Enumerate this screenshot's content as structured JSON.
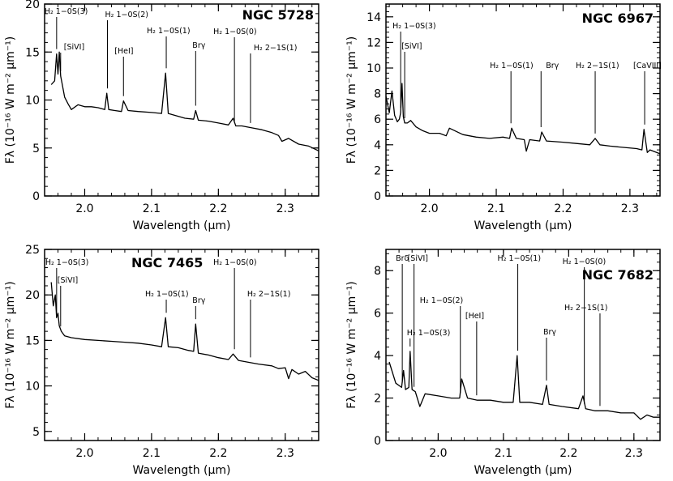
{
  "chart_data": [
    {
      "type": "line",
      "title": "NGC 5728",
      "xlabel": "Wavelength (μm)",
      "ylabel": "Fλ (10⁻¹⁶ W m⁻² μm⁻¹)",
      "xlim": [
        1.94,
        2.35
      ],
      "ylim": [
        0,
        20
      ],
      "xticks": [
        2.0,
        2.1,
        2.2,
        2.3
      ],
      "xtick_labels": [
        "2.0",
        "2.1",
        "2.2",
        "2.3"
      ],
      "yticks": [
        0,
        5,
        10,
        15,
        20
      ],
      "ytick_labels": [
        "0",
        "5",
        "10",
        "15",
        "20"
      ],
      "series": [
        {
          "x": [
            1.95,
            1.955,
            1.958,
            1.96,
            1.962,
            1.964,
            1.966,
            1.97,
            1.975,
            1.98,
            1.99,
            2.0,
            2.01,
            2.02,
            2.03,
            2.033,
            2.036,
            2.045,
            2.055,
            2.058,
            2.065,
            2.08,
            2.1,
            2.115,
            2.121,
            2.125,
            2.135,
            2.15,
            2.163,
            2.166,
            2.17,
            2.185,
            2.2,
            2.215,
            2.222,
            2.226,
            2.235,
            2.25,
            2.265,
            2.28,
            2.29,
            2.295,
            2.305,
            2.32,
            2.335,
            2.35
          ],
          "y": [
            11.6,
            12.0,
            14.8,
            12.7,
            15.0,
            12.5,
            11.8,
            10.3,
            9.6,
            9.0,
            9.5,
            9.3,
            9.3,
            9.2,
            9.0,
            10.7,
            9.0,
            8.9,
            8.8,
            9.9,
            8.9,
            8.8,
            8.7,
            8.6,
            12.8,
            8.6,
            8.4,
            8.1,
            8.0,
            8.9,
            7.9,
            7.8,
            7.6,
            7.4,
            8.1,
            7.3,
            7.3,
            7.1,
            6.9,
            6.6,
            6.3,
            5.7,
            6.0,
            5.4,
            5.2,
            4.7
          ]
        }
      ],
      "annotations": [
        {
          "label": "H₂ 1−0S(3)",
          "x": 1.958
        },
        {
          "label": "[SiVI]",
          "x": 1.964
        },
        {
          "label": "H₂ 1−0S(2)",
          "x": 2.034
        },
        {
          "label": "[HeI]",
          "x": 2.058
        },
        {
          "label": "H₂ 1−0S(1)",
          "x": 2.122
        },
        {
          "label": "Brγ",
          "x": 2.166
        },
        {
          "label": "H₂ 1−0S(0)",
          "x": 2.224
        },
        {
          "label": "H₂ 2−1S(1)",
          "x": 2.248
        }
      ]
    },
    {
      "type": "line",
      "title": "NGC 6967",
      "xlabel": "Wavelength (μm)",
      "ylabel": "Fλ (10⁻¹⁶ W m⁻² μm⁻¹)",
      "xlim": [
        1.935,
        2.345
      ],
      "ylim": [
        0,
        15
      ],
      "xticks": [
        2.0,
        2.1,
        2.2,
        2.3
      ],
      "xtick_labels": [
        "2.0",
        "2.1",
        "2.2",
        "2.3"
      ],
      "yticks": [
        0,
        2,
        4,
        6,
        8,
        10,
        12,
        14
      ],
      "ytick_labels": [
        "0",
        "2",
        "4",
        "6",
        "8",
        "10",
        "12",
        "14"
      ],
      "series": [
        {
          "x": [
            1.935,
            1.94,
            1.944,
            1.948,
            1.952,
            1.955,
            1.957,
            1.959,
            1.961,
            1.963,
            1.967,
            1.972,
            1.98,
            1.99,
            2.0,
            2.015,
            2.025,
            2.03,
            2.05,
            2.07,
            2.09,
            2.11,
            2.12,
            2.123,
            2.13,
            2.142,
            2.145,
            2.15,
            2.165,
            2.168,
            2.175,
            2.2,
            2.22,
            2.24,
            2.248,
            2.255,
            2.27,
            2.29,
            2.31,
            2.318,
            2.321,
            2.326,
            2.33,
            2.345
          ],
          "y": [
            7.8,
            6.5,
            8.2,
            6.3,
            5.8,
            6.0,
            6.5,
            8.8,
            6.2,
            5.7,
            5.7,
            5.9,
            5.4,
            5.1,
            4.9,
            4.9,
            4.7,
            5.3,
            4.8,
            4.6,
            4.5,
            4.6,
            4.5,
            5.3,
            4.5,
            4.4,
            3.5,
            4.4,
            4.3,
            5.0,
            4.3,
            4.2,
            4.1,
            4.0,
            4.5,
            4.0,
            3.9,
            3.8,
            3.7,
            3.6,
            5.2,
            3.4,
            3.6,
            3.3
          ]
        }
      ],
      "annotations": [
        {
          "label": "H₂ 1−0S(3)",
          "x": 1.957
        },
        {
          "label": "[SiVI]",
          "x": 1.963
        },
        {
          "label": "H₂ 1−0S(1)",
          "x": 2.122
        },
        {
          "label": "Brγ",
          "x": 2.167
        },
        {
          "label": "H₂ 2−1S(1)",
          "x": 2.248
        },
        {
          "label": "[CaVIII]",
          "x": 2.322
        }
      ]
    },
    {
      "type": "line",
      "title": "NGC 7465",
      "xlabel": "Wavelength (μm)",
      "ylabel": "Fλ (10⁻¹⁶ W m⁻² μm⁻¹)",
      "xlim": [
        1.94,
        2.35
      ],
      "ylim": [
        4,
        25
      ],
      "xticks": [
        2.0,
        2.1,
        2.2,
        2.3
      ],
      "xtick_labels": [
        "2.0",
        "2.1",
        "2.2",
        "2.3"
      ],
      "yticks": [
        5,
        10,
        15,
        20,
        25
      ],
      "ytick_labels": [
        "5",
        "10",
        "15",
        "20",
        "25"
      ],
      "series": [
        {
          "x": [
            1.95,
            1.953,
            1.956,
            1.958,
            1.96,
            1.962,
            1.965,
            1.97,
            1.98,
            2.0,
            2.02,
            2.04,
            2.06,
            2.08,
            2.1,
            2.115,
            2.121,
            2.125,
            2.14,
            2.155,
            2.163,
            2.166,
            2.17,
            2.185,
            2.2,
            2.215,
            2.222,
            2.23,
            2.245,
            2.26,
            2.28,
            2.29,
            2.3,
            2.305,
            2.31,
            2.32,
            2.33,
            2.34,
            2.35
          ],
          "y": [
            21.4,
            18.8,
            20.0,
            17.5,
            18.0,
            16.6,
            16.0,
            15.5,
            15.3,
            15.1,
            15.0,
            14.9,
            14.8,
            14.7,
            14.5,
            14.3,
            17.5,
            14.3,
            14.2,
            13.9,
            13.8,
            16.8,
            13.6,
            13.4,
            13.1,
            12.9,
            13.5,
            12.8,
            12.6,
            12.4,
            12.2,
            11.9,
            12.0,
            10.8,
            11.8,
            11.3,
            11.6,
            10.9,
            10.6
          ]
        }
      ],
      "annotations": [
        {
          "label": "H₂ 1−0S(3)",
          "x": 1.958
        },
        {
          "label": "[SiVI]",
          "x": 1.964
        },
        {
          "label": "H₂ 1−0S(1)",
          "x": 2.122
        },
        {
          "label": "Brγ",
          "x": 2.166
        },
        {
          "label": "H₂ 1−0S(0)",
          "x": 2.224
        },
        {
          "label": "H₂ 2−1S(1)",
          "x": 2.248
        }
      ]
    },
    {
      "type": "line",
      "title": "NGC 7682",
      "xlabel": "Wavelength (μm)",
      "ylabel": "Fλ (10⁻¹⁶ W m⁻² μm⁻¹)",
      "xlim": [
        1.92,
        2.34
      ],
      "ylim": [
        0,
        9
      ],
      "xticks": [
        2.0,
        2.1,
        2.2,
        2.3
      ],
      "xtick_labels": [
        "2.0",
        "2.1",
        "2.2",
        "2.3"
      ],
      "yticks": [
        0,
        2,
        4,
        6,
        8
      ],
      "ytick_labels": [
        "0",
        "2",
        "4",
        "6",
        "8"
      ],
      "series": [
        {
          "x": [
            1.925,
            1.935,
            1.944,
            1.947,
            1.95,
            1.955,
            1.957,
            1.96,
            1.965,
            1.972,
            1.98,
            2.0,
            2.02,
            2.033,
            2.036,
            2.045,
            2.06,
            2.08,
            2.1,
            2.115,
            2.121,
            2.125,
            2.14,
            2.16,
            2.166,
            2.17,
            2.19,
            2.215,
            2.222,
            2.226,
            2.24,
            2.26,
            2.28,
            2.3,
            2.31,
            2.32,
            2.33,
            2.34
          ],
          "y": [
            3.7,
            2.7,
            2.5,
            3.3,
            2.4,
            2.5,
            4.2,
            2.4,
            2.3,
            1.6,
            2.2,
            2.1,
            2.0,
            2.0,
            2.9,
            2.0,
            1.9,
            1.9,
            1.8,
            1.8,
            4.0,
            1.8,
            1.8,
            1.7,
            2.6,
            1.7,
            1.6,
            1.5,
            2.1,
            1.5,
            1.4,
            1.4,
            1.3,
            1.3,
            1.0,
            1.2,
            1.1,
            1.1
          ]
        }
      ],
      "annotations": [
        {
          "label": "Brδ",
          "x": 1.945
        },
        {
          "label": "H₂ 1−0S(3)",
          "x": 1.957
        },
        {
          "label": "[SiVI]",
          "x": 1.963
        },
        {
          "label": "H₂ 1−0S(2)",
          "x": 2.034
        },
        {
          "label": "[HeI]",
          "x": 2.059
        },
        {
          "label": "H₂ 1−0S(1)",
          "x": 2.122
        },
        {
          "label": "Brγ",
          "x": 2.166
        },
        {
          "label": "H₂ 1−0S(0)",
          "x": 2.224
        },
        {
          "label": "H₂ 2−1S(1)",
          "x": 2.248
        }
      ]
    }
  ]
}
